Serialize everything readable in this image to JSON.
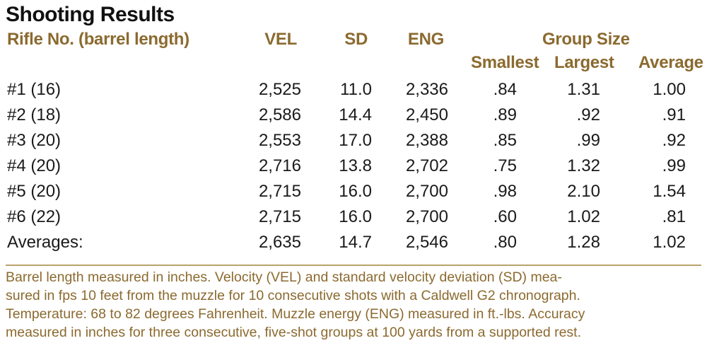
{
  "title": "Shooting Results",
  "headers": {
    "rifle": "Rifle No. (barrel length)",
    "vel": "VEL",
    "sd": "SD",
    "eng": "ENG",
    "group_size": "Group Size",
    "smallest": "Smallest",
    "largest": "Largest",
    "average": "Average"
  },
  "rows": [
    {
      "rifle": "#1 (16)",
      "vel": "2,525",
      "sd": "11.0",
      "eng": "2,336",
      "smallest": ".84",
      "largest": "1.31",
      "average": "1.00"
    },
    {
      "rifle": "#2 (18)",
      "vel": "2,586",
      "sd": "14.4",
      "eng": "2,450",
      "smallest": ".89",
      "largest": ".92",
      "average": ".91"
    },
    {
      "rifle": "#3 (20)",
      "vel": "2,553",
      "sd": "17.0",
      "eng": "2,388",
      "smallest": ".85",
      "largest": ".99",
      "average": ".92"
    },
    {
      "rifle": "#4 (20)",
      "vel": "2,716",
      "sd": "13.8",
      "eng": "2,702",
      "smallest": ".75",
      "largest": "1.32",
      "average": ".99"
    },
    {
      "rifle": "#5 (20)",
      "vel": "2,715",
      "sd": "16.0",
      "eng": "2,700",
      "smallest": ".98",
      "largest": "2.10",
      "average": "1.54"
    },
    {
      "rifle": "#6 (22)",
      "vel": "2,715",
      "sd": "16.0",
      "eng": "2,700",
      "smallest": ".60",
      "largest": "1.02",
      "average": ".81"
    },
    {
      "rifle": "Averages:",
      "vel": "2,635",
      "sd": "14.7",
      "eng": "2,546",
      "smallest": ".80",
      "largest": "1.28",
      "average": "1.02"
    }
  ],
  "footnote": [
    "Barrel length measured in inches. Velocity (VEL) and standard velocity deviation (SD) mea-",
    "sured in fps 10 feet from the muzzle for 10 consecutive shots with a Caldwell G2 chronograph.",
    "Temperature: 68 to 82 degrees Fahrenheit. Muzzle energy (ENG) measured in ft.-lbs. Accuracy",
    "measured in inches for three consecutive, five-shot groups at 100 yards from a supported rest."
  ],
  "colors": {
    "header": "#8b6a2f",
    "body_text": "#1a1a1a",
    "rule": "#b9a36b"
  }
}
